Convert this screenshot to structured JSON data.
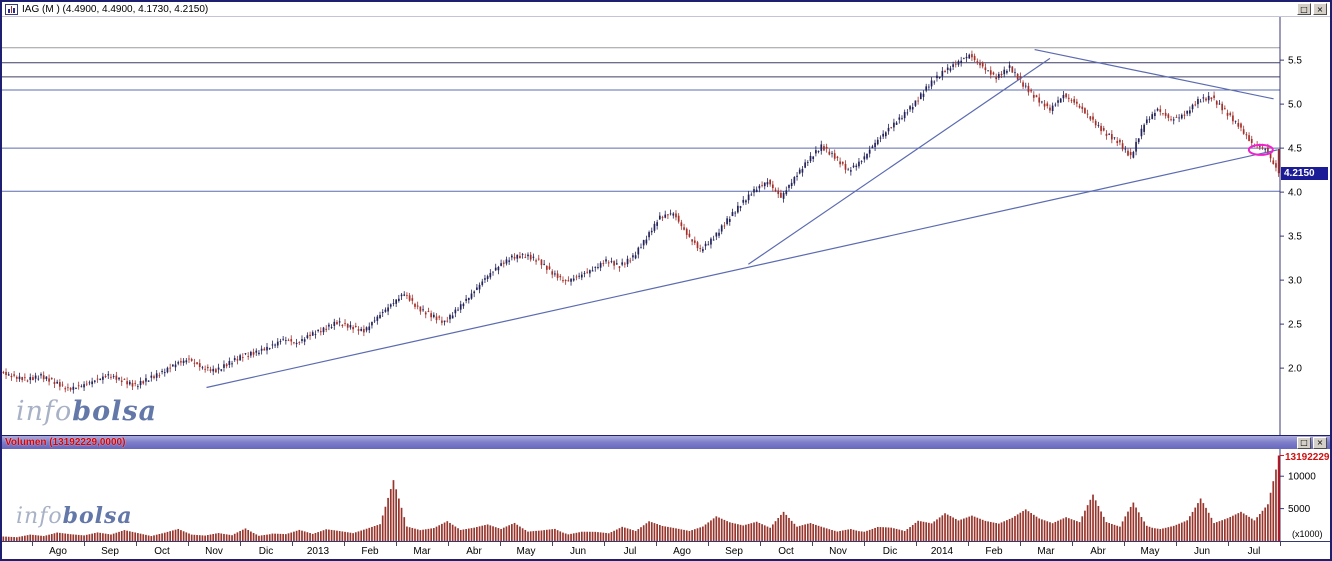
{
  "icons": {
    "maximize": "□",
    "close": "×"
  },
  "watermark": {
    "prefix": "info",
    "suffix": "bolsa"
  },
  "price_window": {
    "title": "IAG (M ) (4.4900, 4.4900, 4.1730, 4.2150)",
    "last_price_label": "4.2150"
  },
  "volume_window": {
    "title": "Volumen (13192229,0000)",
    "last_label": "13192229",
    "axis_unit": "(x1000)"
  },
  "chart_data": [
    {
      "type": "candlestick",
      "series_label": "IAG (M )",
      "ohlc_last": {
        "open": 4.49,
        "high": 4.49,
        "low": 4.173,
        "close": 4.215
      },
      "y_ticks": [
        5.5,
        5.0,
        4.5,
        4.0,
        3.5,
        3.0,
        2.5,
        2.0
      ],
      "y_range": [
        1.24,
        5.99
      ],
      "x_labels": [
        "Ago",
        "Sep",
        "Oct",
        "Nov",
        "Dic",
        "2013",
        "Feb",
        "Mar",
        "Abr",
        "May",
        "Jun",
        "Jul",
        "Ago",
        "Sep",
        "Oct",
        "Nov",
        "Dic",
        "2014",
        "Feb",
        "Mar",
        "Abr",
        "May",
        "Jun",
        "Jul"
      ],
      "weekly_closes": [
        1.95,
        1.9,
        1.87,
        1.91,
        1.84,
        1.76,
        1.8,
        1.86,
        1.92,
        1.86,
        1.8,
        1.88,
        1.95,
        2.05,
        2.1,
        2.0,
        1.97,
        2.06,
        2.14,
        2.18,
        2.24,
        2.33,
        2.28,
        2.38,
        2.44,
        2.52,
        2.47,
        2.42,
        2.58,
        2.72,
        2.85,
        2.68,
        2.6,
        2.52,
        2.68,
        2.84,
        3.02,
        3.16,
        3.26,
        3.28,
        3.22,
        3.08,
        2.98,
        3.05,
        3.12,
        3.22,
        3.16,
        3.26,
        3.48,
        3.72,
        3.76,
        3.52,
        3.34,
        3.48,
        3.68,
        3.86,
        4.02,
        4.12,
        3.94,
        4.16,
        4.36,
        4.52,
        4.4,
        4.24,
        4.36,
        4.56,
        4.72,
        4.86,
        5.02,
        5.22,
        5.36,
        5.46,
        5.56,
        5.42,
        5.3,
        5.42,
        5.22,
        5.06,
        4.94,
        5.1,
        5.0,
        4.84,
        4.68,
        4.58,
        4.4,
        4.78,
        4.94,
        4.82,
        4.88,
        5.04,
        5.08,
        4.92,
        4.76,
        4.55,
        4.49,
        4.215
      ],
      "horizontal_lines": [
        {
          "price": 5.64,
          "color": "#9a9aa0"
        },
        {
          "price": 5.47,
          "color": "#3f3f66"
        },
        {
          "price": 5.31,
          "color": "#3f3f66"
        },
        {
          "price": 5.16,
          "color": "#5b6bb0"
        },
        {
          "price": 4.5,
          "color": "#5b6bb0"
        },
        {
          "price": 4.01,
          "color": "#5b6bb0"
        }
      ],
      "trend_lines": [
        {
          "t1": 0.16,
          "p1": 1.78,
          "t2": 0.998,
          "p2": 4.48
        },
        {
          "t1": 0.584,
          "p1": 3.18,
          "t2": 0.82,
          "p2": 5.52
        },
        {
          "t1": 0.808,
          "p1": 5.62,
          "t2": 0.995,
          "p2": 5.06
        }
      ],
      "ellipse_annotation": {
        "t": 0.985,
        "price": 4.48
      },
      "colors": {
        "up": "#23235a",
        "down": "#a42f2a",
        "trend": "#5b6bb0",
        "ellipse": "#ee22cc"
      }
    },
    {
      "type": "bar",
      "series_label": "Volumen",
      "y_ticks": [
        10000,
        5000
      ],
      "y_max": 14200,
      "last_value": 13192,
      "weekly_volumes": [
        900,
        700,
        1100,
        800,
        1300,
        1000,
        800,
        1200,
        900,
        1500,
        1100,
        700,
        1200,
        1800,
        1000,
        900,
        1400,
        1100,
        2600,
        1200,
        1800,
        1500,
        2200,
        1300,
        2000,
        1600,
        1200,
        1800,
        2400,
        8500,
        2000,
        1500,
        1800,
        2800,
        1600,
        2000,
        2600,
        2000,
        3200,
        1800,
        2200,
        2800,
        1600,
        2000,
        1800,
        1400,
        2400,
        1600,
        3000,
        2200,
        1800,
        1400,
        2000,
        3400,
        2600,
        2200,
        2800,
        2000,
        4600,
        2400,
        3200,
        2600,
        2000,
        2800,
        2200,
        3000,
        2600,
        1800,
        3400,
        2800,
        4200,
        3000,
        3600,
        2800,
        2400,
        3200,
        4400,
        3200,
        2600,
        3600,
        3000,
        7800,
        3400,
        2800,
        8200,
        3600,
        2800,
        3200,
        4000,
        7600,
        3000,
        3600,
        4400,
        3000,
        5200,
        13192
      ],
      "colors": {
        "bar": "#97352c",
        "last": "#d01010"
      }
    }
  ]
}
